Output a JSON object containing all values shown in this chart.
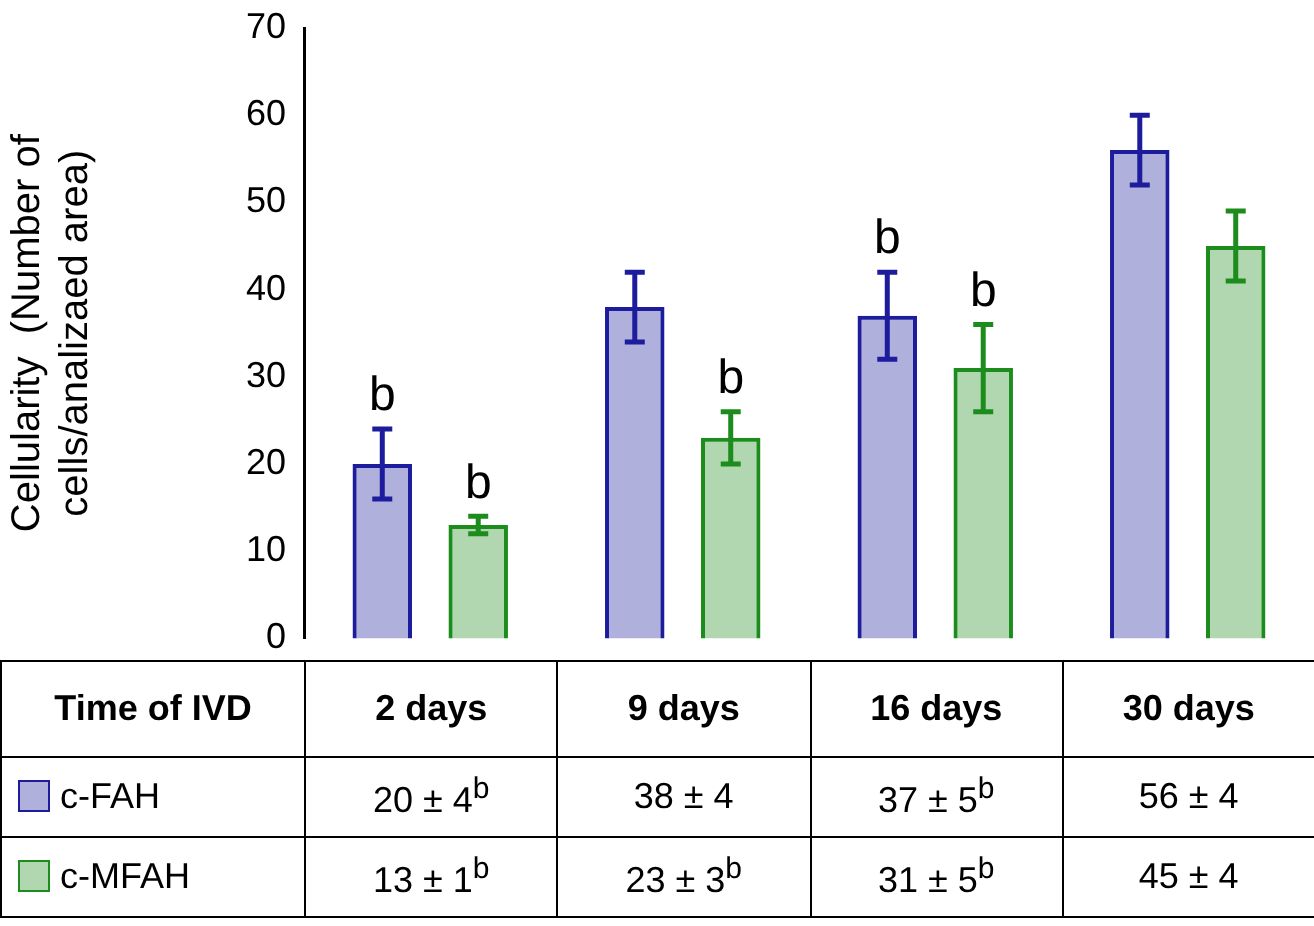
{
  "chart_data": {
    "type": "bar",
    "ylabel": "Cellularity  (Number of cells/analizaed area)",
    "xlabel": "Time of IVD",
    "categories": [
      "2 days",
      "9 days",
      "16 days",
      "30 days"
    ],
    "series": [
      {
        "name": "c-FAH",
        "color": "#1c1c9c",
        "values": [
          20,
          38,
          37,
          56
        ],
        "errors": [
          4,
          4,
          5,
          4
        ],
        "value_labels": [
          "20 ± 4$^{b}$",
          "38 ± 4",
          "37 ± 5$^{b}$",
          "56 ± 4"
        ]
      },
      {
        "name": "c-MFAH",
        "color": "#1c8c1c",
        "values": [
          13,
          23,
          31,
          45
        ],
        "errors": [
          1,
          3,
          5,
          4
        ],
        "value_labels": [
          "13 ± 1$^{b}$",
          "23 ± 3$^{b}$",
          "31 ± 5$^{b}$",
          "45 ± 4"
        ]
      }
    ],
    "annotations": [
      "b",
      "b",
      "b",
      "b",
      "b"
    ],
    "ylim": [
      0,
      70
    ],
    "yticks": [
      0,
      10,
      20,
      30,
      40,
      50,
      60,
      70
    ],
    "grid": false,
    "legend": "bottom"
  }
}
